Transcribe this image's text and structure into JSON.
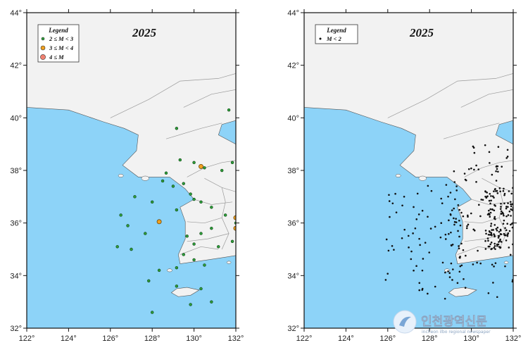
{
  "maps": [
    {
      "year": "2025",
      "legend": {
        "title": "Legend",
        "items": [
          {
            "label": "2 ≤ M < 3",
            "color": "#2e9e3a"
          },
          {
            "label": "3 ≤ M < 4",
            "color": "#f0a020"
          },
          {
            "label": "4 ≤ M",
            "color": "#f08070"
          }
        ]
      }
    },
    {
      "year": "2025",
      "legend": {
        "title": "Legend",
        "items": [
          {
            "label": "M < 2",
            "color": "#111111"
          }
        ]
      }
    }
  ],
  "x_ticks": [
    "122°",
    "124°",
    "126°",
    "128°",
    "130°",
    "132°"
  ],
  "y_ticks": [
    "32°",
    "34°",
    "36°",
    "38°",
    "40°",
    "42°",
    "44°"
  ],
  "colors": {
    "sea": "#8dd3f8",
    "land": "#f2f2f2",
    "border": "#9a9a9a"
  },
  "watermark": {
    "name": "인천광역신문",
    "sub": "incheon ilbo regional newspaper"
  }
}
